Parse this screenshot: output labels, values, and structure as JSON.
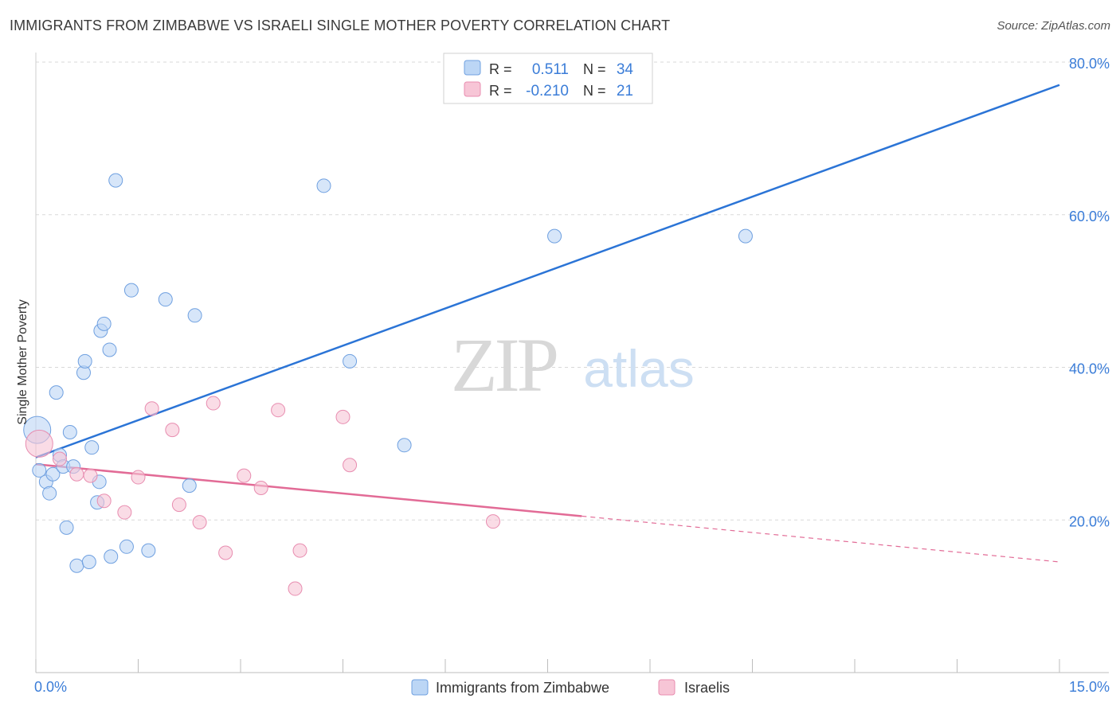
{
  "title": "IMMIGRANTS FROM ZIMBABWE VS ISRAELI SINGLE MOTHER POVERTY CORRELATION CHART",
  "source": "Source: ZipAtlas.com",
  "watermark": {
    "zip": "ZIP",
    "atlas": "atlas"
  },
  "colors": {
    "blue": "#2b74d6",
    "blue_fill": "#bcd6f5",
    "pink": "#e26b96",
    "pink_fill": "#f7c5d6",
    "value_text": "#3b7dd8",
    "grid": "#d9d9d9"
  },
  "stats_legend": {
    "rows": [
      {
        "r_label": "R =",
        "r_value": "0.511",
        "n_label": "N =",
        "n_value": "34"
      },
      {
        "r_label": "R =",
        "r_value": "-0.210",
        "n_label": "N =",
        "n_value": "21"
      }
    ]
  },
  "bottom_legend": {
    "items": [
      {
        "label": "Immigrants from Zimbabwe"
      },
      {
        "label": "Israelis"
      }
    ]
  },
  "chart_data": {
    "type": "scatter",
    "ylabel": "Single Mother Poverty",
    "xlim": [
      0,
      15
    ],
    "ylim": [
      0,
      80
    ],
    "x_ticks": [
      {
        "value": 0,
        "label": "0.0%"
      },
      {
        "value": 15,
        "label": "15.0%"
      }
    ],
    "y_ticks": [
      {
        "value": 20,
        "label": "20.0%"
      },
      {
        "value": 40,
        "label": "40.0%"
      },
      {
        "value": 60,
        "label": "60.0%"
      },
      {
        "value": 80,
        "label": "80.0%"
      }
    ],
    "grid": "horizontal dashed",
    "legend_position": "top-center and bottom",
    "series": [
      {
        "name": "Immigrants from Zimbabwe",
        "color": "#2b74d6",
        "points": [
          [
            0.02,
            31.8
          ],
          [
            0.05,
            26.5
          ],
          [
            0.15,
            25.0
          ],
          [
            0.2,
            23.5
          ],
          [
            0.25,
            26.0
          ],
          [
            0.3,
            36.7
          ],
          [
            0.35,
            28.5
          ],
          [
            0.4,
            27.0
          ],
          [
            0.45,
            19.0
          ],
          [
            0.5,
            31.5
          ],
          [
            0.55,
            27.0
          ],
          [
            0.6,
            14.0
          ],
          [
            0.7,
            39.3
          ],
          [
            0.72,
            40.8
          ],
          [
            0.78,
            14.5
          ],
          [
            0.82,
            29.5
          ],
          [
            0.9,
            22.3
          ],
          [
            0.93,
            25.0
          ],
          [
            0.95,
            44.8
          ],
          [
            1.0,
            45.7
          ],
          [
            1.08,
            42.3
          ],
          [
            1.1,
            15.2
          ],
          [
            1.17,
            64.5
          ],
          [
            1.33,
            16.5
          ],
          [
            1.4,
            50.1
          ],
          [
            1.65,
            16.0
          ],
          [
            1.9,
            48.9
          ],
          [
            2.25,
            24.5
          ],
          [
            2.33,
            46.8
          ],
          [
            4.22,
            63.8
          ],
          [
            4.6,
            40.8
          ],
          [
            5.4,
            29.8
          ],
          [
            7.6,
            57.2
          ],
          [
            10.4,
            57.2
          ]
        ],
        "trend": {
          "x_start": 0.0,
          "y_start": 28.2,
          "x_end": 15.0,
          "y_end": 77.0
        }
      },
      {
        "name": "Israelis",
        "color": "#e26b96",
        "points": [
          [
            0.05,
            30.0
          ],
          [
            0.35,
            28.0
          ],
          [
            0.6,
            26.0
          ],
          [
            0.8,
            25.8
          ],
          [
            1.0,
            22.5
          ],
          [
            1.3,
            21.0
          ],
          [
            1.5,
            25.6
          ],
          [
            1.7,
            34.6
          ],
          [
            2.0,
            31.8
          ],
          [
            2.1,
            22.0
          ],
          [
            2.4,
            19.7
          ],
          [
            2.6,
            35.3
          ],
          [
            2.78,
            15.7
          ],
          [
            3.05,
            25.8
          ],
          [
            3.3,
            24.2
          ],
          [
            3.55,
            34.4
          ],
          [
            3.8,
            11.0
          ],
          [
            3.87,
            16.0
          ],
          [
            4.5,
            33.5
          ],
          [
            4.6,
            27.2
          ],
          [
            6.7,
            19.8
          ]
        ],
        "trend": {
          "x_start": 0.0,
          "y_start": 27.3,
          "x_end": 8.0,
          "y_end": 20.5,
          "dash_x_end": 15.0,
          "dash_y_end": 14.5
        }
      }
    ]
  }
}
